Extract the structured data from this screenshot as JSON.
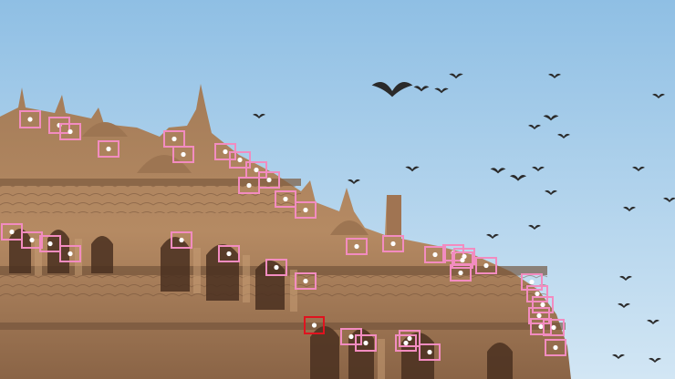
{
  "scene": {
    "subject": "palace-facade-with-flying-birds",
    "sky_color_top": "#8fbfe4",
    "sky_color_bottom": "#d2e6f4",
    "stone_color_light": "#b58a63",
    "stone_color_dark": "#6a4a33"
  },
  "annotations": {
    "box_color": "#f28cc0",
    "highlight_color": "#e0131f",
    "count": 49,
    "highlighted_count": 1
  }
}
